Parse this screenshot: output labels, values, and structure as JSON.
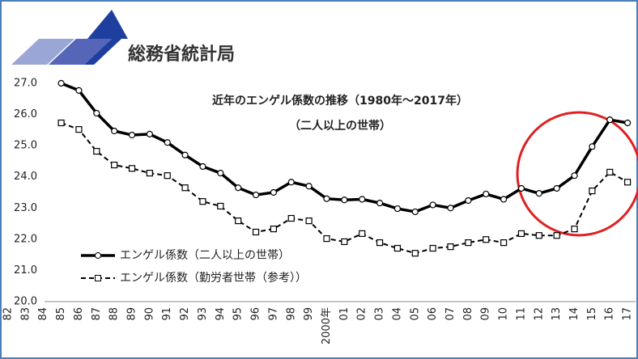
{
  "header": {
    "title": "総務省統計局"
  },
  "chart_data": {
    "type": "line",
    "title": "近年のエンゲル係数の推移（1980年～2017年）",
    "subtitle": "（二人以上の世帯）",
    "categories": [
      "82",
      "83",
      "84",
      "85",
      "86",
      "87",
      "88",
      "89",
      "90",
      "91",
      "92",
      "93",
      "94",
      "95",
      "96",
      "97",
      "98",
      "99",
      "2000年",
      "01",
      "02",
      "03",
      "04",
      "05",
      "06",
      "07",
      "08",
      "09",
      "10",
      "11",
      "12",
      "13",
      "14",
      "15",
      "16",
      "17"
    ],
    "series": [
      {
        "name": "エンゲル係数（二人以上の世帯）",
        "color": "#000000",
        "dash": false,
        "marker": "circle",
        "values": [
          null,
          null,
          null,
          27.0,
          26.77,
          26.04,
          25.47,
          25.34,
          25.37,
          25.1,
          24.7,
          24.33,
          24.12,
          23.65,
          23.42,
          23.5,
          23.83,
          23.7,
          23.3,
          23.26,
          23.28,
          23.16,
          22.98,
          22.88,
          23.1,
          23.0,
          23.24,
          23.45,
          23.28,
          23.63,
          23.47,
          23.63,
          24.04,
          24.97,
          25.83,
          25.73
        ]
      },
      {
        "name": "エンゲル係数（勤労者世帯（参考））",
        "color": "#000000",
        "dash": true,
        "marker": "square",
        "values": [
          null,
          null,
          null,
          25.73,
          25.52,
          24.82,
          24.38,
          24.27,
          24.12,
          24.04,
          23.65,
          23.21,
          23.06,
          22.59,
          22.23,
          22.33,
          22.67,
          22.59,
          22.02,
          21.92,
          22.18,
          21.89,
          21.71,
          21.55,
          21.71,
          21.76,
          21.89,
          21.99,
          21.89,
          22.18,
          22.12,
          22.12,
          22.33,
          23.55,
          24.15,
          23.83
        ]
      }
    ],
    "ylim": [
      20.0,
      27.0
    ],
    "yticks": [
      {
        "value": 20,
        "label": "20.0"
      },
      {
        "value": 21,
        "label": "21.0"
      },
      {
        "value": 22,
        "label": "22.0"
      },
      {
        "value": 23,
        "label": "23.0"
      },
      {
        "value": 24,
        "label": "24.0"
      },
      {
        "value": 25,
        "label": "25.0"
      },
      {
        "value": 26,
        "label": "26.0"
      },
      {
        "value": 27,
        "label": "27.0"
      }
    ],
    "grid": false
  }
}
